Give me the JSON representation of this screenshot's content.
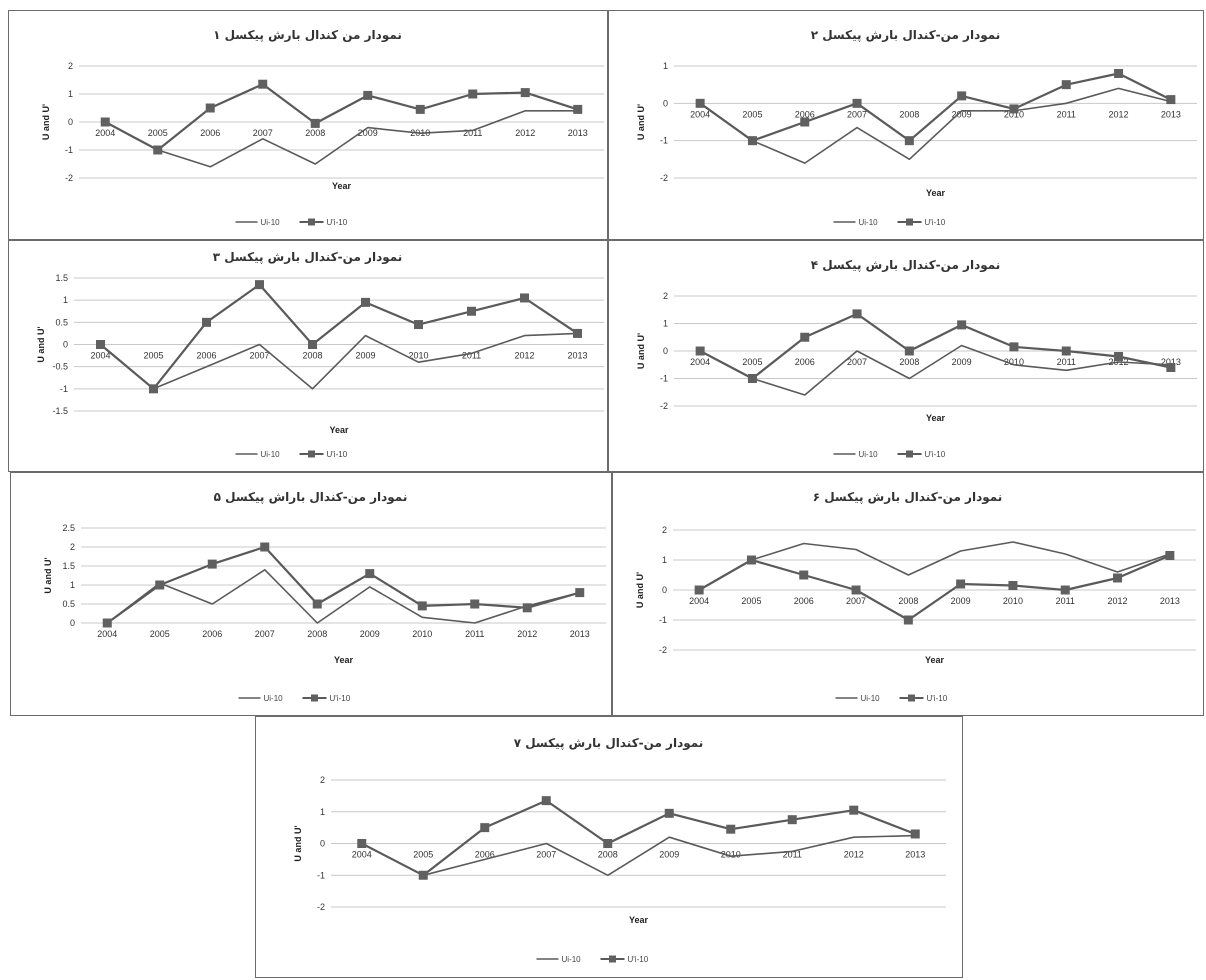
{
  "chart_data": [
    {
      "type": "line",
      "title": "نمودار من کندال بارش پیکسل ۱",
      "xlabel": "Year",
      "ylabel": "U and U'",
      "ylim": [
        -2,
        2
      ],
      "yticks": [
        2,
        1,
        0,
        -1,
        -2
      ],
      "categories": [
        "2004",
        "2005",
        "2006",
        "2007",
        "2008",
        "2009",
        "2010",
        "2011",
        "2012",
        "2013"
      ],
      "series": [
        {
          "name": "Ui-10",
          "marker": "none",
          "values": [
            0,
            -1,
            -1.6,
            -0.6,
            -1.5,
            -0.2,
            -0.4,
            -0.3,
            0.4,
            0.4
          ]
        },
        {
          "name": "U'i-10",
          "marker": "square",
          "values": [
            0,
            -1,
            0.5,
            1.35,
            -0.05,
            0.95,
            0.45,
            1.0,
            1.05,
            0.45
          ]
        }
      ]
    },
    {
      "type": "line",
      "title": "نمودار من-کندال بارش پیکسل ۲",
      "xlabel": "Year",
      "ylabel": "U and U'",
      "ylim": [
        -2,
        1
      ],
      "yticks": [
        1,
        0,
        -1,
        -2
      ],
      "categories": [
        "2004",
        "2005",
        "2006",
        "2007",
        "2008",
        "2009",
        "2010",
        "2011",
        "2012",
        "2013"
      ],
      "series": [
        {
          "name": "Ui-10",
          "marker": "none",
          "values": [
            0,
            -1,
            -1.6,
            -0.65,
            -1.5,
            -0.2,
            -0.2,
            0,
            0.4,
            0.05
          ]
        },
        {
          "name": "U'i-10",
          "marker": "square",
          "values": [
            0,
            -1,
            -0.5,
            0,
            -1,
            0.2,
            -0.15,
            0.5,
            0.8,
            0.1
          ]
        }
      ]
    },
    {
      "type": "line",
      "title": "نمودار من-کندال بارش پیکسل ۳",
      "xlabel": "Year",
      "ylabel": "U and U'",
      "ylim": [
        -1.5,
        1.5
      ],
      "yticks": [
        1.5,
        1,
        0.5,
        0,
        -0.5,
        -1,
        -1.5
      ],
      "categories": [
        "2004",
        "2005",
        "2006",
        "2007",
        "2008",
        "2009",
        "2010",
        "2011",
        "2012",
        "2013"
      ],
      "series": [
        {
          "name": "Ui-10",
          "marker": "none",
          "values": [
            0,
            -1,
            -0.5,
            0,
            -1,
            0.2,
            -0.4,
            -0.2,
            0.2,
            0.25
          ]
        },
        {
          "name": "U'i-10",
          "marker": "square",
          "values": [
            0,
            -1,
            0.5,
            1.35,
            0,
            0.95,
            0.45,
            0.75,
            1.05,
            0.25
          ]
        }
      ]
    },
    {
      "type": "line",
      "title": "نمودار من-کندال بارش پیکسل ۴",
      "xlabel": "Year",
      "ylabel": "U and U'",
      "ylim": [
        -2,
        2
      ],
      "yticks": [
        2,
        1,
        0,
        -1,
        -2
      ],
      "categories": [
        "2004",
        "2005",
        "2006",
        "2007",
        "2008",
        "2009",
        "2010",
        "2011",
        "2012",
        "2013"
      ],
      "series": [
        {
          "name": "Ui-10",
          "marker": "none",
          "values": [
            0,
            -1,
            -1.6,
            0,
            -1,
            0.2,
            -0.5,
            -0.7,
            -0.4,
            -0.5
          ]
        },
        {
          "name": "U'i-10",
          "marker": "square",
          "values": [
            0,
            -1,
            0.5,
            1.35,
            0,
            0.95,
            0.15,
            0,
            -0.2,
            -0.6
          ]
        }
      ]
    },
    {
      "type": "line",
      "title": "نمودار من-کندال باراش پیکسل ۵",
      "xlabel": "Year",
      "ylabel": "U and U'",
      "ylim": [
        0,
        2.5
      ],
      "yticks": [
        2.5,
        2,
        1.5,
        1,
        0.5,
        0
      ],
      "categories": [
        "2004",
        "2005",
        "2006",
        "2007",
        "2008",
        "2009",
        "2010",
        "2011",
        "2012",
        "2013"
      ],
      "series": [
        {
          "name": "Ui-10",
          "marker": "none",
          "values": [
            0,
            1.05,
            0.5,
            1.4,
            0,
            0.95,
            0.15,
            0,
            0.45,
            0.8
          ]
        },
        {
          "name": "U'i-10",
          "marker": "square",
          "values": [
            0,
            1,
            1.55,
            2.0,
            0.5,
            1.3,
            0.45,
            0.5,
            0.4,
            0.8
          ]
        }
      ]
    },
    {
      "type": "line",
      "title": "نمودار من-کندال بارش پیکسل ۶",
      "xlabel": "Year",
      "ylabel": "U and U'",
      "ylim": [
        -2,
        2
      ],
      "yticks": [
        2,
        1,
        0,
        -1,
        -2
      ],
      "categories": [
        "2004",
        "2005",
        "2006",
        "2007",
        "2008",
        "2009",
        "2010",
        "2011",
        "2012",
        "2013"
      ],
      "series": [
        {
          "name": "Ui-10",
          "marker": "none",
          "values": [
            0,
            1,
            1.55,
            1.35,
            0.5,
            1.3,
            1.6,
            1.2,
            0.6,
            1.2
          ]
        },
        {
          "name": "U'i-10",
          "marker": "square",
          "values": [
            0,
            1,
            0.5,
            0,
            -1,
            0.2,
            0.15,
            0,
            0.4,
            1.15
          ]
        }
      ]
    },
    {
      "type": "line",
      "title": "نمودار من-کندال بارش پیکسل ۷",
      "xlabel": "Year",
      "ylabel": "U and U'",
      "ylim": [
        -2,
        2
      ],
      "yticks": [
        2,
        1,
        0,
        -1,
        -2
      ],
      "categories": [
        "2004",
        "2005",
        "2006",
        "2007",
        "2008",
        "2009",
        "2010",
        "2011",
        "2012",
        "2013"
      ],
      "series": [
        {
          "name": "Ui-10",
          "marker": "none",
          "values": [
            0,
            -1,
            -0.5,
            0,
            -1,
            0.2,
            -0.4,
            -0.25,
            0.2,
            0.25
          ]
        },
        {
          "name": "U'i-10",
          "marker": "square",
          "values": [
            0,
            -1,
            0.5,
            1.35,
            0,
            0.95,
            0.45,
            0.75,
            1.05,
            0.3
          ]
        }
      ]
    }
  ],
  "colors": {
    "line": "#5a5a5a",
    "marker": "#606060",
    "grid": "#c8c8c8",
    "border": "#6b6b6b"
  }
}
